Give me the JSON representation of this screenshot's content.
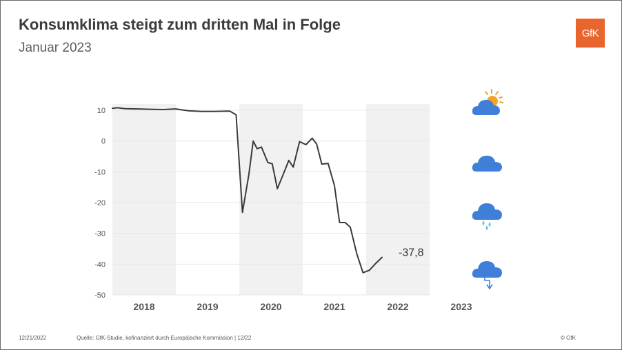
{
  "header": {
    "title": "Konsumklima steigt zum dritten Mal in Folge",
    "subtitle": "Januar 2023",
    "logo_text": "GfK"
  },
  "footer": {
    "date": "12/21/2022",
    "source": "Quelle: GfK-Studie, kofinanziert durch Europäische Kommission | 12/22",
    "copyright": "© GfK"
  },
  "weather_icons": [
    {
      "name": "sun-cloud-icon",
      "meaning": "sunny"
    },
    {
      "name": "cloud-icon",
      "meaning": "cloudy"
    },
    {
      "name": "rain-cloud-icon",
      "meaning": "rain"
    },
    {
      "name": "storm-cloud-icon",
      "meaning": "storm"
    }
  ],
  "colors": {
    "line": "#3a3a3a",
    "band": "#f1f1f1",
    "logo": "#e8662d",
    "icon_cloud": "#3f7fd8",
    "icon_sun": "#f5a42a",
    "icon_drops": "#62c3e0"
  },
  "chart_data": {
    "type": "line",
    "title": "Konsumklima steigt zum dritten Mal in Folge",
    "subtitle": "Januar 2023",
    "xlabel": "",
    "ylabel": "",
    "ylim": [
      -50,
      12
    ],
    "yticks": [
      10,
      0,
      -10,
      -20,
      -30,
      -40,
      -50
    ],
    "xlim": [
      2018.0,
      2023.5
    ],
    "year_labels": [
      "2018",
      "2019",
      "2020",
      "2021",
      "2022",
      "2023"
    ],
    "shaded_years": [
      "2018",
      "2020",
      "2022"
    ],
    "grid": true,
    "last_value_label": "-37,8",
    "series": [
      {
        "name": "Konsumklima",
        "x": [
          2018.0,
          2018.08,
          2018.2,
          2018.4,
          2018.6,
          2018.8,
          2019.0,
          2019.1,
          2019.2,
          2019.4,
          2019.6,
          2019.85,
          2019.95,
          2020.05,
          2020.15,
          2020.22,
          2020.28,
          2020.35,
          2020.45,
          2020.52,
          2020.6,
          2020.7,
          2020.78,
          2020.85,
          2020.95,
          2021.05,
          2021.15,
          2021.22,
          2021.3,
          2021.4,
          2021.5,
          2021.58,
          2021.67,
          2021.75,
          2021.85,
          2021.95,
          2022.05,
          2022.15,
          2022.25,
          2022.35,
          2022.42,
          2022.5
        ],
        "values": [
          10.6,
          10.8,
          10.5,
          10.4,
          10.3,
          10.2,
          10.4,
          10.1,
          9.8,
          9.6,
          9.6,
          9.7,
          8.5,
          -23.2,
          -11.0,
          0.0,
          -2.5,
          -2.0,
          -7.0,
          -7.4,
          -15.5,
          -10.5,
          -6.3,
          -8.5,
          -0.2,
          -1.2,
          0.9,
          -1.0,
          -7.5,
          -7.3,
          -14.5,
          -26.5,
          -26.5,
          -28.0,
          -36.5,
          -42.8,
          -42.0,
          -39.8,
          -37.8,
          null,
          null,
          null
        ]
      }
    ]
  }
}
